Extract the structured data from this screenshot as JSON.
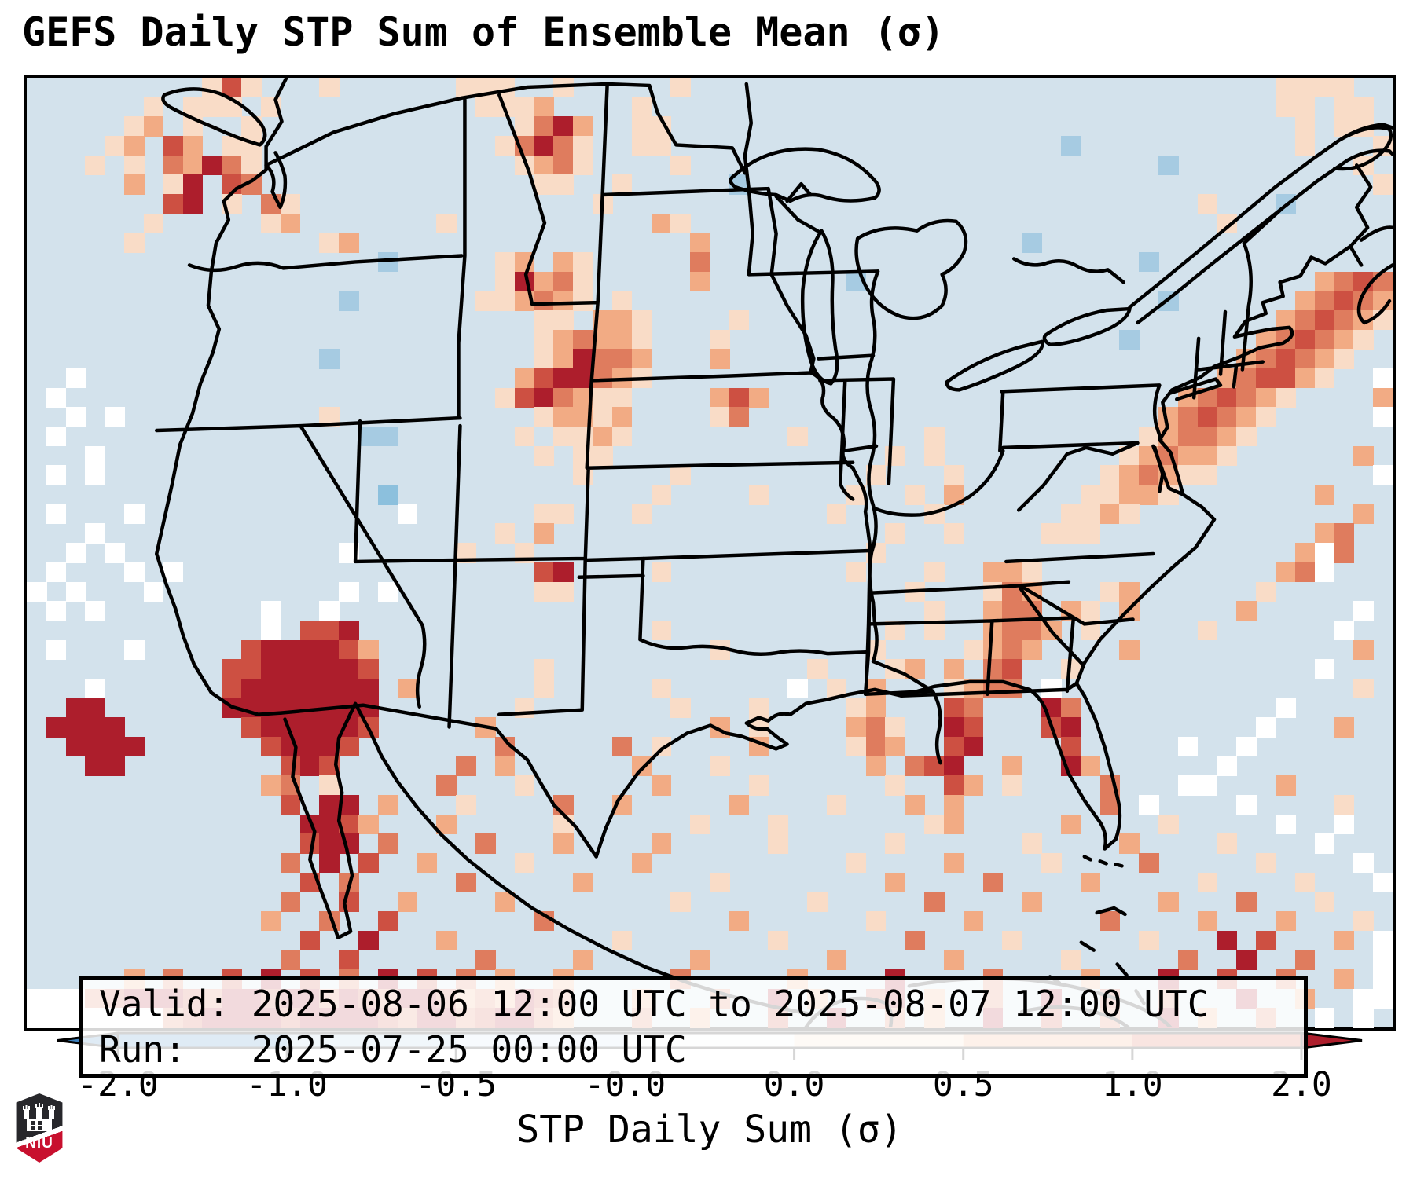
{
  "title": "GEFS Daily STP Sum of Ensemble Mean (σ)",
  "info_box": {
    "valid_line": "Valid: 2025-08-06 12:00 UTC to 2025-08-07 12:00 UTC",
    "run_line": "Run:   2025-07-25 00:00 UTC"
  },
  "logo": {
    "text": "NIU"
  },
  "chart_data": {
    "type": "heatmap",
    "title": "GEFS Daily STP Sum of Ensemble Mean (σ)",
    "xlabel": "STP Daily Sum (σ)",
    "valid": "2025-08-06 12:00 UTC to 2025-08-07 12:00 UTC",
    "run": "2025-07-25 00:00 UTC",
    "basemap_color": "#d3e2ec",
    "region": "Continental United States with state borders, Canada, Mexico, Cuba",
    "colorbar": {
      "orientation": "horizontal",
      "tick_labels": [
        "-2.0",
        "-1.0",
        "-0.5",
        "-0.0",
        "0.0",
        "0.5",
        "1.0",
        "2.0"
      ],
      "boundaries": [
        -2.0,
        -1.0,
        -0.5,
        -0.0,
        0.0,
        0.5,
        1.0,
        2.0
      ],
      "segment_colors": [
        "#3c80bd",
        "#a6cbe2",
        "#cfe1ee",
        "#f2f4f6",
        "#f9dcc7",
        "#f0a87e",
        "#d65f45"
      ],
      "extend_low_color": "#3c80bd",
      "extend_high_color": "#ad1e2c"
    },
    "palette": {
      "w": "#ffffff",
      "b": "#a6cbe2",
      "B": "#8cc0dd",
      "1": "#f9dcc7",
      "2": "#f2ab84",
      "3": "#df7c5e",
      "4": "#cd5042",
      "5": "#ad1e2c"
    },
    "grid_rows": [
      [
        ".........1",
        "41...1....",
        "..111..1..",
        "...1......",
        "..........",
        "..........",
        "....1111.."
      ],
      [
        "......1.11",
        "1.1.......",
        "...1112...",
        ".1........",
        "..........",
        "..........",
        "....11.11."
      ],
      [
        ".....12.1.",
        ".1........",
        ".....1352.",
        ".11.......",
        "..........",
        "..........",
        ".....1.11."
      ],
      [
        "....12.42.",
        "11........",
        "....13531.",
        ".11.......",
        "..........",
        "...b......",
        ".....1...1"
      ],
      [
        "...1.1.325",
        "31........",
        ".....1231.",
        "...1......",
        "..........",
        "........b.",
        "........1."
      ],
      [
        ".....2.15.",
        "43........",
        "......11..",
        "1.....b...",
        "..........",
        "..........",
        ".........1"
      ],
      [
        ".......45.",
        "1.31......",
        ".........1",
        "..........",
        "..........",
        "..........",
        "1...b....."
      ],
      [
        "......1...",
        "..12......",
        ".1........",
        "..21......",
        "..........",
        "..........",
        ".1........"
      ],
      [
        ".....1....",
        ".....12...",
        "..........",
        "....2.....",
        "..........",
        ".b........",
        ".........."
      ],
      [
        "..........",
        "........b.",
        "....12.21.",
        "....3.....",
        "..........",
        ".......b..",
        ".........."
      ],
      [
        "..........",
        "..........",
        "....15231.",
        "....2.....",
        "..b.......",
        "..........",
        "......2343"
      ],
      [
        "..........",
        "......b...",
        "...112321.",
        "1.........",
        "..........",
        "........b.",
        ".....23432"
      ],
      [
        "..........",
        "..........",
        "......11.2",
        "21....1...",
        "..........",
        "..........",
        "....234321"
      ],
      [
        "..........",
        "..........",
        "......1232",
        "21...1....",
        "..........",
        "......b...",
        "...234321."
      ],
      [
        "..........",
        ".....b....",
        "......1253",
        "32...2....",
        "..........",
        "..........",
        "..234321.."
      ],
      [
        "..w.......",
        "..........",
        ".....24553",
        "21........",
        "..........",
        "..........",
        ".234421..w"
      ],
      [
        ".w........",
        "..........",
        "....145321",
        "1....242..",
        "..........",
        ".........2",
        "34321....2"
      ],
      [
        "..w.w.....",
        ".....1....",
        "......1221",
        "2....13...",
        "..........",
        "........23",
        "4321.....w"
      ],
      [
        ".w........",
        ".......bb.",
        ".....1.112",
        "1........1",
        "......1...",
        ".......123",
        "321......."
      ],
      [
        "...w......",
        "..........",
        "......1.11",
        "..........",
        "....1.1...",
        "......1232",
        "21......2."
      ],
      [
        ".w.w......",
        "..........",
        "........1.",
        "...1......",
        "...1...1..",
        ".....12321",
        "1........w"
      ],
      [
        "..........",
        "........B.",
        "..........",
        "..1....1..",
        "..1..1.2..",
        "....11221.",
        "......2..."
      ],
      [
        ".w...w....",
        ".........w",
        "......11..",
        ".1........",
        ".1....1...",
        "...1121...",
        "........2."
      ],
      [
        "...w......",
        "..........",
        "....1.2...",
        "..........",
        "....1..1..",
        "..111.....",
        "......23.."
      ],
      [
        "..w.w.....",
        "......w...",
        "..1..1....",
        "..........",
        "...1......",
        "..........",
        ".....2w3.."
      ],
      [
        ".w...w.w..",
        "..........",
        "......45..",
        "..1.......",
        "..1...1..2",
        "21........",
        "....23w..."
      ],
      [
        "w.w...w...",
        "......w.w.",
        "......11..",
        "..........",
        ".....1...1",
        "32...12...",
        "...1......"
      ],
      [
        ".w.w......",
        "..w..w....",
        "..........",
        "..........",
        "......1..2",
        "33.21.2...",
        "..2.....w."
      ],
      [
        "..........",
        "..w.445...",
        "..........",
        "..1.......",
        "....1.1..2",
        "332.1.....",
        "1......w.."
      ],
      [
        ".w...w....",
        ".4555542..",
        "..........",
        ".....1....",
        "...1....12",
        "32....2...",
        "........2."
      ],
      [
        "..........",
        "44555554..",
        "......1...",
        "..........",
        "1...12.2.3",
        "4..1......",
        "......w..."
      ],
      [
        "...w......",
        "45555555.2",
        "......1...",
        "..1......w",
        ".1.2...123",
        "3.w.......",
        "........1."
      ],
      [
        "..55......",
        "55555555..",
        ".....1....",
        "...1...1..",
        "..12...43.",
        "..53......",
        "....w....."
      ],
      [
        ".5555.....",
        ".4555554..",
        "...2......",
        ".....2.1..",
        "..231..54.",
        "..45......",
        "...w...2.."
      ],
      [
        "..5555....",
        "..45554...",
        "....3.....",
        "3.1....2..",
        "..132..45.",
        "...4.....w",
        "..w......."
      ],
      [
        "...55.....",
        "...454....",
        "..3.2.....",
        ".2...1....",
        "...2.345..",
        "2..52.....",
        ".w........"
      ],
      [
        "..........",
        "..23.1....",
        ".3...1....",
        "..2....1..",
        "....1..42.",
        "1....3...w",
        "w...2....."
      ],
      [
        "..........",
        "...4.55.2.",
        "..1....3..",
        "2.....2...",
        ".1...2.2..",
        ".....3.w..",
        "..w....1.."
      ],
      [
        "..........",
        "....5542..",
        ".2.....1..",
        "....1...1.",
        "......12..",
        "...2....1.",
        "....w..w.."
      ],
      [
        "..........",
        "....455.3.",
        "...3...2..",
        "..2.....1.",
        "....1.....",
        ".1....2...",
        ".1....w..."
      ],
      [
        "..........",
        "...3.5.4..",
        "2....1....",
        ".2........",
        "..1....2..",
        "..1....3..",
        "...1....w."
      ],
      [
        "..........",
        "....4.3...",
        "..3.....2.",
        ".....1....",
        "....2....3",
        "....2.....",
        "1....1...w"
      ],
      [
        "..........",
        "...3..4..2",
        "....2.....",
        "...1......",
        "1.....3...",
        ".2......2.",
        "..3...1..."
      ],
      [
        "..........",
        "..2..3..4.",
        "......3...",
        "......2...",
        "...1....2.",
        ".....3....",
        "2...2...1."
      ],
      [
        "..........",
        "....4..5..",
        ".2........",
        "1.......1.",
        ".....3....",
        "1......1..",
        ".5.4...2.w"
      ],
      [
        "..........",
        "...3..4...",
        "...3....2.",
        "....2.....",
        ".2.....2..",
        "...1.....3",
        "..5..3...w"
      ],
      [
        ".....2.3..",
        "4.5.4.3.5.",
        "4.3.2..2..",
        "...3.....2",
        "....5....3",
        "....2...5.",
        ".4..3..2.w"
      ],
      [
        "www3455543",
        "5545535435",
        "54232543..",
        ".2...3..5.",
        "2..45.2..3",
        "..5..4..3.",
        "..5..2..ww"
      ],
      [
        "wwwwwww345",
        "5554555543",
        "55345532..",
        ".3..2...4.",
        ".5..3.2..5",
        "..4..3..5.",
        "2..3..w.w."
      ]
    ]
  }
}
